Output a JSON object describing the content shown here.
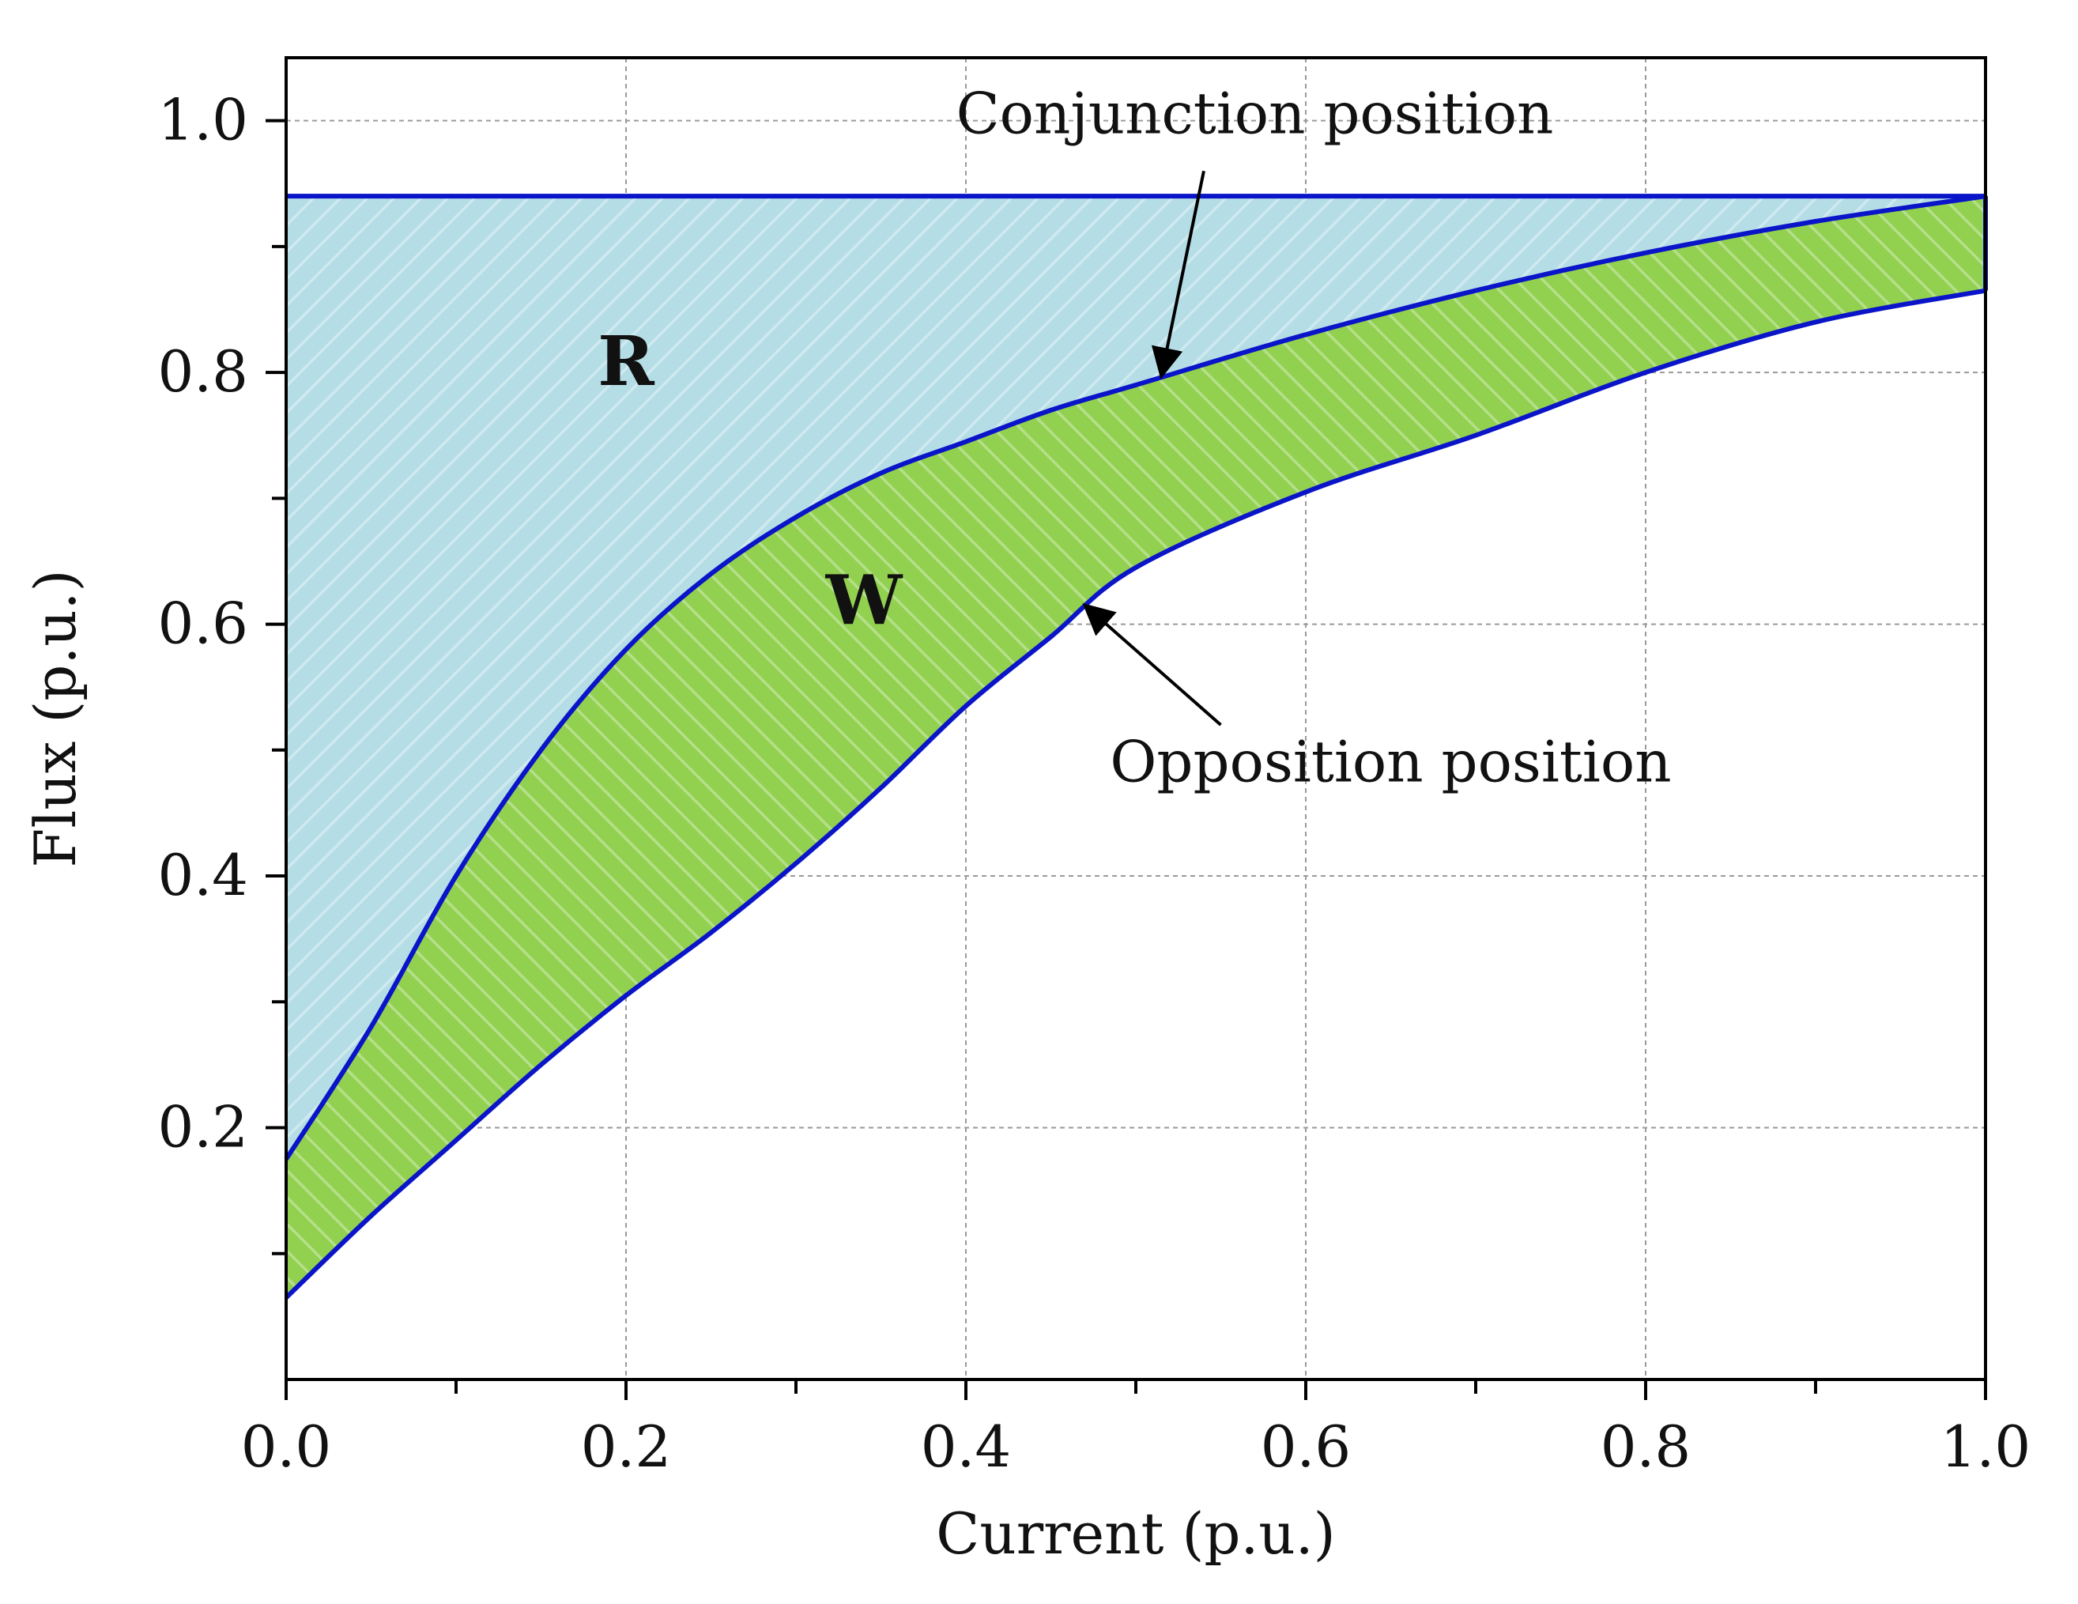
{
  "chart_data": {
    "type": "area",
    "xlabel": "Current (p.u.)",
    "ylabel": "Flux (p.u.)",
    "xlim": [
      0,
      1
    ],
    "ylim": [
      0,
      1.05
    ],
    "x_ticks": [
      "0.0",
      "0.2",
      "0.4",
      "0.6",
      "0.8",
      "1.0"
    ],
    "y_ticks": [
      "0.2",
      "0.4",
      "0.6",
      "0.8",
      "1.0"
    ],
    "grid": true,
    "series": [
      {
        "name": "Conjunction position",
        "x": [
          0.0,
          0.05,
          0.1,
          0.15,
          0.2,
          0.25,
          0.3,
          0.35,
          0.4,
          0.45,
          0.5,
          0.6,
          0.7,
          0.8,
          0.9,
          1.0
        ],
        "y": [
          0.175,
          0.28,
          0.4,
          0.5,
          0.58,
          0.64,
          0.685,
          0.72,
          0.745,
          0.77,
          0.79,
          0.83,
          0.865,
          0.895,
          0.92,
          0.94
        ]
      },
      {
        "name": "Opposition position",
        "x": [
          0.0,
          0.05,
          0.1,
          0.15,
          0.2,
          0.25,
          0.3,
          0.35,
          0.4,
          0.45,
          0.5,
          0.6,
          0.7,
          0.8,
          0.9,
          1.0
        ],
        "y": [
          0.065,
          0.13,
          0.19,
          0.25,
          0.305,
          0.355,
          0.41,
          0.47,
          0.535,
          0.59,
          0.645,
          0.705,
          0.75,
          0.8,
          0.84,
          0.865
        ]
      }
    ],
    "saturation_flux": 0.94,
    "regions": [
      {
        "label": "R",
        "x": 0.2,
        "y": 0.79,
        "color": "#b4dde6"
      },
      {
        "label": "W",
        "x": 0.34,
        "y": 0.6,
        "color": "#92d050"
      }
    ],
    "annotations": [
      {
        "text": "Conjunction position",
        "text_x": 0.57,
        "text_y": 0.99,
        "arrow_from": [
          0.54,
          0.96
        ],
        "arrow_to": [
          0.515,
          0.797
        ]
      },
      {
        "text": "Opposition position",
        "text_x": 0.65,
        "text_y": 0.475,
        "arrow_from": [
          0.55,
          0.52
        ],
        "arrow_to": [
          0.47,
          0.615
        ]
      }
    ],
    "line_color": "#0a14c8"
  }
}
